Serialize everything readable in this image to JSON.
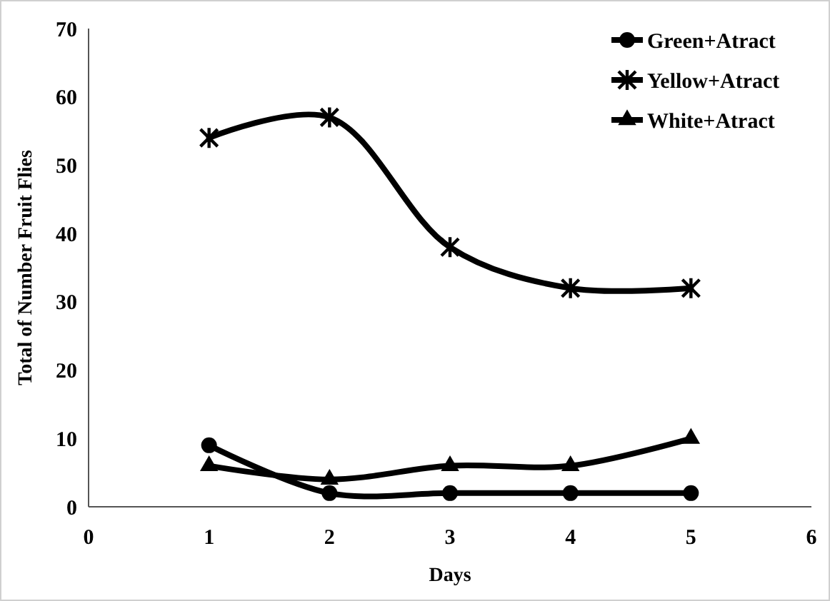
{
  "chart_data": {
    "type": "line",
    "xlabel": "Days",
    "ylabel": "Total of Number Fruit Flies",
    "x": [
      1,
      2,
      3,
      4,
      5
    ],
    "series": [
      {
        "name": "Green+Atract",
        "color": "#000000",
        "marker": "circle",
        "values": [
          9,
          2,
          2,
          2,
          2
        ]
      },
      {
        "name": "Yellow+Atract",
        "color": "#000000",
        "marker": "cross",
        "values": [
          54,
          57,
          38,
          32,
          32
        ]
      },
      {
        "name": "White+Atract",
        "color": "#000000",
        "marker": "triangle",
        "values": [
          6,
          4,
          6,
          6,
          10
        ]
      }
    ],
    "xlim": [
      0,
      6
    ],
    "xticks": [
      0,
      1,
      2,
      3,
      4,
      5,
      6
    ],
    "ylim": [
      0,
      70
    ],
    "yticks": [
      0,
      10,
      20,
      30,
      40,
      50,
      60,
      70
    ],
    "grid": false,
    "legend": "top right",
    "line_style": "solid"
  }
}
